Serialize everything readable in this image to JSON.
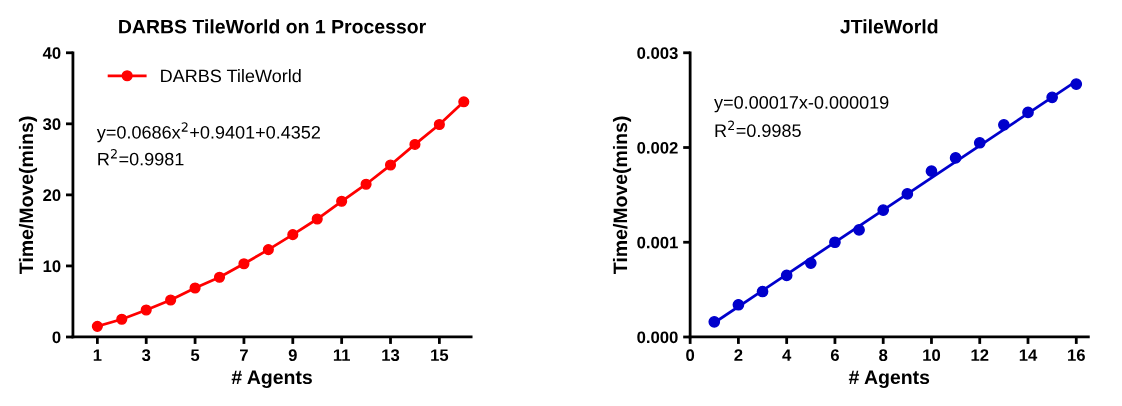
{
  "chart_data": [
    {
      "type": "line",
      "title": "DARBS TileWorld on 1 Processor",
      "xlabel": "# Agents",
      "ylabel": "Time/Move(mins)",
      "x": [
        1,
        2,
        3,
        4,
        5,
        6,
        7,
        8,
        9,
        10,
        11,
        12,
        13,
        14,
        15,
        16
      ],
      "series": [
        {
          "name": "DARBS TileWorld",
          "color": "#ff0000",
          "values": [
            1.5,
            2.5,
            3.8,
            5.2,
            6.9,
            8.4,
            10.3,
            12.3,
            14.4,
            16.6,
            19.1,
            21.5,
            24.2,
            27.1,
            29.9,
            33.1
          ]
        }
      ],
      "xlim": [
        0,
        16.3
      ],
      "xticks": [
        1,
        3,
        5,
        7,
        9,
        11,
        13,
        15
      ],
      "ylim": [
        0,
        40
      ],
      "yticks": [
        0,
        10,
        20,
        30,
        40
      ],
      "marker": "circle",
      "legend": "top left",
      "grid": false,
      "annotations": [
        "y=0.0686x$^{2}$+0.9401+0.4352",
        "R$^{2}$=0.9981"
      ]
    },
    {
      "type": "scatter",
      "title": "JTileWorld",
      "xlabel": "# Agents",
      "ylabel": "Time/Move(mins)",
      "x": [
        1,
        2,
        3,
        4,
        5,
        6,
        7,
        8,
        9,
        10,
        11,
        12,
        13,
        14,
        15,
        16
      ],
      "series": [
        {
          "color": "#0000cc",
          "values": [
            0.00016,
            0.00034,
            0.00048,
            0.00065,
            0.00078,
            0.001,
            0.00113,
            0.00134,
            0.00151,
            0.00175,
            0.00189,
            0.00205,
            0.00224,
            0.00237,
            0.00253,
            0.00267
          ]
        },
        {
          "type": "line",
          "color": "#0000cc",
          "marker": "none",
          "x": [
            1,
            16
          ],
          "values": [
            0.00015,
            0.0027
          ]
        }
      ],
      "xlim": [
        0,
        16.5
      ],
      "xticks": [
        0,
        2,
        4,
        6,
        8,
        10,
        12,
        14,
        16
      ],
      "ylim": [
        0,
        0.003
      ],
      "yticks": [
        {
          "value": 0,
          "label": "0.000"
        },
        {
          "value": 0.001,
          "label": "0.001"
        },
        {
          "value": 0.002,
          "label": "0.002"
        },
        {
          "value": 0.003,
          "label": "0.003"
        }
      ],
      "marker": "circle",
      "grid": false,
      "annotations": [
        "y=0.00017x-0.000019",
        "R$^{2}$=0.9985"
      ]
    }
  ]
}
